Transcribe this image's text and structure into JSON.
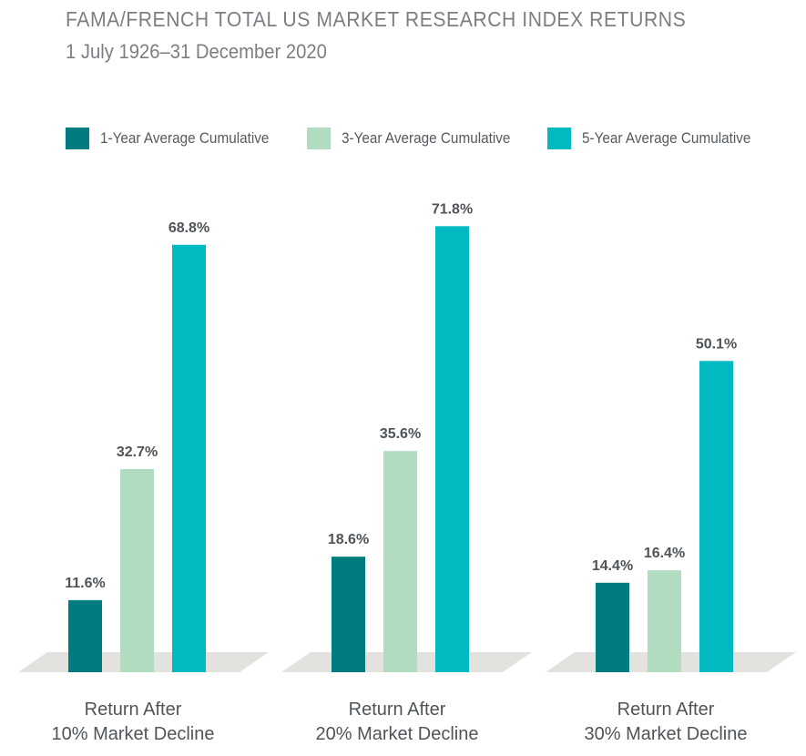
{
  "header": {
    "title": "FAMA/FRENCH TOTAL US MARKET RESEARCH INDEX RETURNS",
    "subtitle": "1 July 1926–31 December 2020"
  },
  "legend": [
    {
      "label": "1-Year Average Cumulative",
      "color": "#007b80"
    },
    {
      "label": "3-Year Average Cumulative",
      "color": "#b1dcc0"
    },
    {
      "label": "5-Year Average Cumulative",
      "color": "#00b9c1"
    }
  ],
  "groups": [
    {
      "line1": "Return After",
      "line2": "10% Market Decline"
    },
    {
      "line1": "Return After",
      "line2": "20% Market Decline"
    },
    {
      "line1": "Return After",
      "line2": "30% Market Decline"
    }
  ],
  "chart_data": {
    "type": "bar",
    "title": "FAMA/FRENCH TOTAL US MARKET RESEARCH INDEX RETURNS",
    "subtitle": "1 July 1926–31 December 2020",
    "categories": [
      "Return After 10% Market Decline",
      "Return After 20% Market Decline",
      "Return After 30% Market Decline"
    ],
    "series": [
      {
        "name": "1-Year Average Cumulative",
        "values": [
          11.6,
          18.6,
          14.4
        ],
        "labels": [
          "11.6%",
          "18.6%",
          "14.4%"
        ],
        "color": "#007b80"
      },
      {
        "name": "3-Year Average Cumulative",
        "values": [
          32.7,
          35.6,
          16.4
        ],
        "labels": [
          "32.7%",
          "35.6%",
          "16.4%"
        ],
        "color": "#b1dcc0"
      },
      {
        "name": "5-Year Average Cumulative",
        "values": [
          68.8,
          71.8,
          50.1
        ],
        "labels": [
          "68.8%",
          "71.8%",
          "50.1%"
        ],
        "color": "#00b9c1"
      }
    ],
    "unit": "%",
    "ylim": [
      0,
      80
    ],
    "grid": false,
    "legend_position": "top"
  }
}
